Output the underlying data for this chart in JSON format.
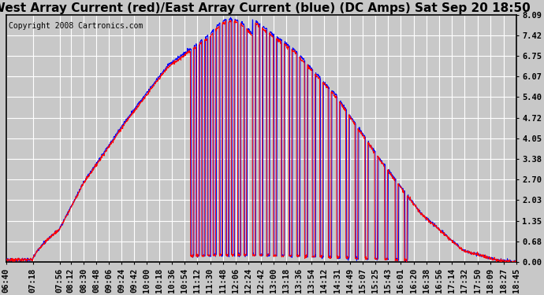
{
  "title": "West Array Current (red)/East Array Current (blue) (DC Amps) Sat Sep 20 18:50",
  "copyright_text": "Copyright 2008 Cartronics.com",
  "background_color": "#c8c8c8",
  "plot_bg_color": "#c8c8c8",
  "grid_color": "white",
  "y_ticks": [
    0.0,
    0.68,
    1.35,
    2.03,
    2.7,
    3.38,
    4.05,
    4.72,
    5.4,
    6.07,
    6.75,
    7.42,
    8.09
  ],
  "ylim": [
    0.0,
    8.09
  ],
  "x_labels": [
    "06:40",
    "07:18",
    "07:56",
    "08:12",
    "08:30",
    "08:48",
    "09:06",
    "09:24",
    "09:42",
    "10:00",
    "10:18",
    "10:36",
    "10:54",
    "11:12",
    "11:30",
    "11:48",
    "12:06",
    "12:24",
    "12:42",
    "13:00",
    "13:18",
    "13:36",
    "13:54",
    "14:12",
    "14:31",
    "14:49",
    "15:07",
    "15:25",
    "15:43",
    "16:01",
    "16:20",
    "16:38",
    "16:56",
    "17:14",
    "17:32",
    "17:50",
    "18:09",
    "18:27",
    "18:45"
  ],
  "line_red_color": "#ff0000",
  "line_blue_color": "#0000ff",
  "title_fontsize": 11,
  "tick_fontsize": 7.5,
  "copyright_fontsize": 7
}
